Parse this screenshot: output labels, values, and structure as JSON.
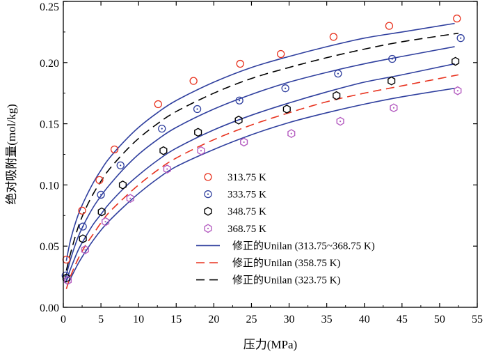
{
  "chart_data": {
    "type": "scatter",
    "xlabel": "压力(MPa)",
    "ylabel": "绝对吸附量(mol/kg)",
    "xlim": [
      0,
      55
    ],
    "ylim": [
      0,
      0.25
    ],
    "xticks": [
      0,
      5,
      10,
      15,
      20,
      25,
      30,
      35,
      40,
      45,
      50,
      55
    ],
    "yticks": [
      0.0,
      0.05,
      0.1,
      0.15,
      0.2,
      0.25
    ],
    "ytick_labels": [
      "0.00",
      "0.05",
      "0.10",
      "0.15",
      "0.20",
      "0.25"
    ],
    "grid": false,
    "legend_position": "lower-right",
    "scatter_series": [
      {
        "name": "313.75 K",
        "marker": "circle",
        "color": "#e8321e",
        "x": [
          0.4,
          2.5,
          4.8,
          6.8,
          12.6,
          17.3,
          23.5,
          28.9,
          35.9,
          43.3,
          52.3
        ],
        "y": [
          0.039,
          0.079,
          0.104,
          0.129,
          0.166,
          0.185,
          0.199,
          0.207,
          0.221,
          0.23,
          0.236
        ]
      },
      {
        "name": "333.75 K",
        "marker": "circle-dot",
        "color": "#2f3f9e",
        "x": [
          0.3,
          2.6,
          5.0,
          7.6,
          13.1,
          17.8,
          23.4,
          29.5,
          36.5,
          43.7,
          52.8
        ],
        "y": [
          0.026,
          0.066,
          0.092,
          0.116,
          0.146,
          0.162,
          0.169,
          0.179,
          0.191,
          0.203,
          0.22
        ]
      },
      {
        "name": "348.75 K",
        "marker": "hexagon",
        "color": "#000000",
        "x": [
          0.4,
          2.6,
          5.1,
          7.9,
          13.3,
          17.9,
          23.3,
          29.7,
          36.3,
          43.6,
          52.1
        ],
        "y": [
          0.024,
          0.056,
          0.078,
          0.1,
          0.128,
          0.143,
          0.153,
          0.162,
          0.173,
          0.185,
          0.201
        ]
      },
      {
        "name": "368.75 K",
        "marker": "hexagon-dot",
        "color": "#b45cc0",
        "x": [
          0.6,
          2.9,
          5.6,
          8.9,
          13.8,
          18.3,
          24.0,
          30.3,
          36.8,
          43.9,
          52.4
        ],
        "y": [
          0.022,
          0.047,
          0.07,
          0.089,
          0.113,
          0.128,
          0.135,
          0.142,
          0.152,
          0.163,
          0.177
        ]
      }
    ],
    "line_series": [
      {
        "name": "修正的Unilan (313.75~368.75 K)",
        "style": "solid",
        "color": "#2f3f9e",
        "curves": [
          {
            "x": [
              0.4,
              1.0,
              2.0,
              3.0,
              4.0,
              5.0,
              6.0,
              8.0,
              10.0,
              12.5,
              15.0,
              20.0,
              25.0,
              30.0,
              35.0,
              40.0,
              45.0,
              52.0
            ],
            "y": [
              0.038,
              0.056,
              0.076,
              0.09,
              0.102,
              0.112,
              0.121,
              0.135,
              0.147,
              0.159,
              0.169,
              0.184,
              0.196,
              0.205,
              0.213,
              0.22,
              0.225,
              0.232
            ]
          },
          {
            "x": [
              0.3,
              1.0,
              2.0,
              3.0,
              4.0,
              5.0,
              6.0,
              8.0,
              10.0,
              12.5,
              15.0,
              20.0,
              25.0,
              30.0,
              35.0,
              40.0,
              45.0,
              52.0
            ],
            "y": [
              0.024,
              0.04,
              0.058,
              0.071,
              0.082,
              0.091,
              0.099,
              0.113,
              0.125,
              0.137,
              0.147,
              0.162,
              0.174,
              0.184,
              0.192,
              0.199,
              0.205,
              0.213
            ]
          },
          {
            "x": [
              0.3,
              1.0,
              2.0,
              3.0,
              4.0,
              5.0,
              6.0,
              8.0,
              10.0,
              12.5,
              15.0,
              20.0,
              25.0,
              30.0,
              35.0,
              40.0,
              45.0,
              52.0
            ],
            "y": [
              0.02,
              0.032,
              0.047,
              0.058,
              0.068,
              0.076,
              0.084,
              0.097,
              0.108,
              0.12,
              0.13,
              0.145,
              0.157,
              0.167,
              0.176,
              0.184,
              0.19,
              0.199
            ]
          },
          {
            "x": [
              0.5,
              1.0,
              2.0,
              3.0,
              4.0,
              5.0,
              6.0,
              8.0,
              10.0,
              12.5,
              15.0,
              20.0,
              25.0,
              30.0,
              35.0,
              40.0,
              45.0,
              52.0
            ],
            "y": [
              0.018,
              0.024,
              0.036,
              0.046,
              0.055,
              0.063,
              0.07,
              0.082,
              0.093,
              0.105,
              0.115,
              0.129,
              0.141,
              0.151,
              0.159,
              0.166,
              0.172,
              0.179
            ]
          }
        ]
      },
      {
        "name": "修正的Unilan (358.75 K)",
        "style": "dashed",
        "color": "#e8321e",
        "curves": [
          {
            "x": [
              0.4,
              1.0,
              2.0,
              3.0,
              4.0,
              5.0,
              6.0,
              8.0,
              10.0,
              12.5,
              15.0,
              20.0,
              25.0,
              30.0,
              35.0,
              40.0,
              45.0,
              52.5
            ],
            "y": [
              0.015,
              0.026,
              0.04,
              0.051,
              0.06,
              0.069,
              0.077,
              0.089,
              0.1,
              0.112,
              0.122,
              0.137,
              0.149,
              0.159,
              0.168,
              0.175,
              0.181,
              0.19
            ]
          }
        ]
      },
      {
        "name": "修正的Unilan (323.75 K)",
        "style": "dashed",
        "color": "#000000",
        "curves": [
          {
            "x": [
              0.4,
              1.0,
              2.0,
              3.0,
              4.0,
              5.0,
              6.0,
              8.0,
              10.0,
              12.5,
              15.0,
              20.0,
              25.0,
              30.0,
              35.0,
              40.0,
              45.0,
              52.5
            ],
            "y": [
              0.03,
              0.045,
              0.066,
              0.081,
              0.093,
              0.103,
              0.112,
              0.126,
              0.138,
              0.15,
              0.16,
              0.175,
              0.187,
              0.196,
              0.204,
              0.211,
              0.217,
              0.224
            ]
          }
        ]
      }
    ],
    "legend": [
      {
        "label": "313.75 K",
        "kind": "marker",
        "marker": "circle",
        "color": "#e8321e"
      },
      {
        "label": "333.75 K",
        "kind": "marker",
        "marker": "circle-dot",
        "color": "#2f3f9e"
      },
      {
        "label": "348.75 K",
        "kind": "marker",
        "marker": "hexagon",
        "color": "#000000"
      },
      {
        "label": "368.75 K",
        "kind": "marker",
        "marker": "hexagon-dot",
        "color": "#b45cc0"
      },
      {
        "label": "修正的Unilan (313.75~368.75 K)",
        "kind": "line",
        "style": "solid",
        "color": "#2f3f9e"
      },
      {
        "label": "修正的Unilan (358.75 K)",
        "kind": "line",
        "style": "dashed",
        "color": "#e8321e"
      },
      {
        "label": "修正的Unilan (323.75 K)",
        "kind": "line",
        "style": "dashed",
        "color": "#000000"
      }
    ]
  }
}
